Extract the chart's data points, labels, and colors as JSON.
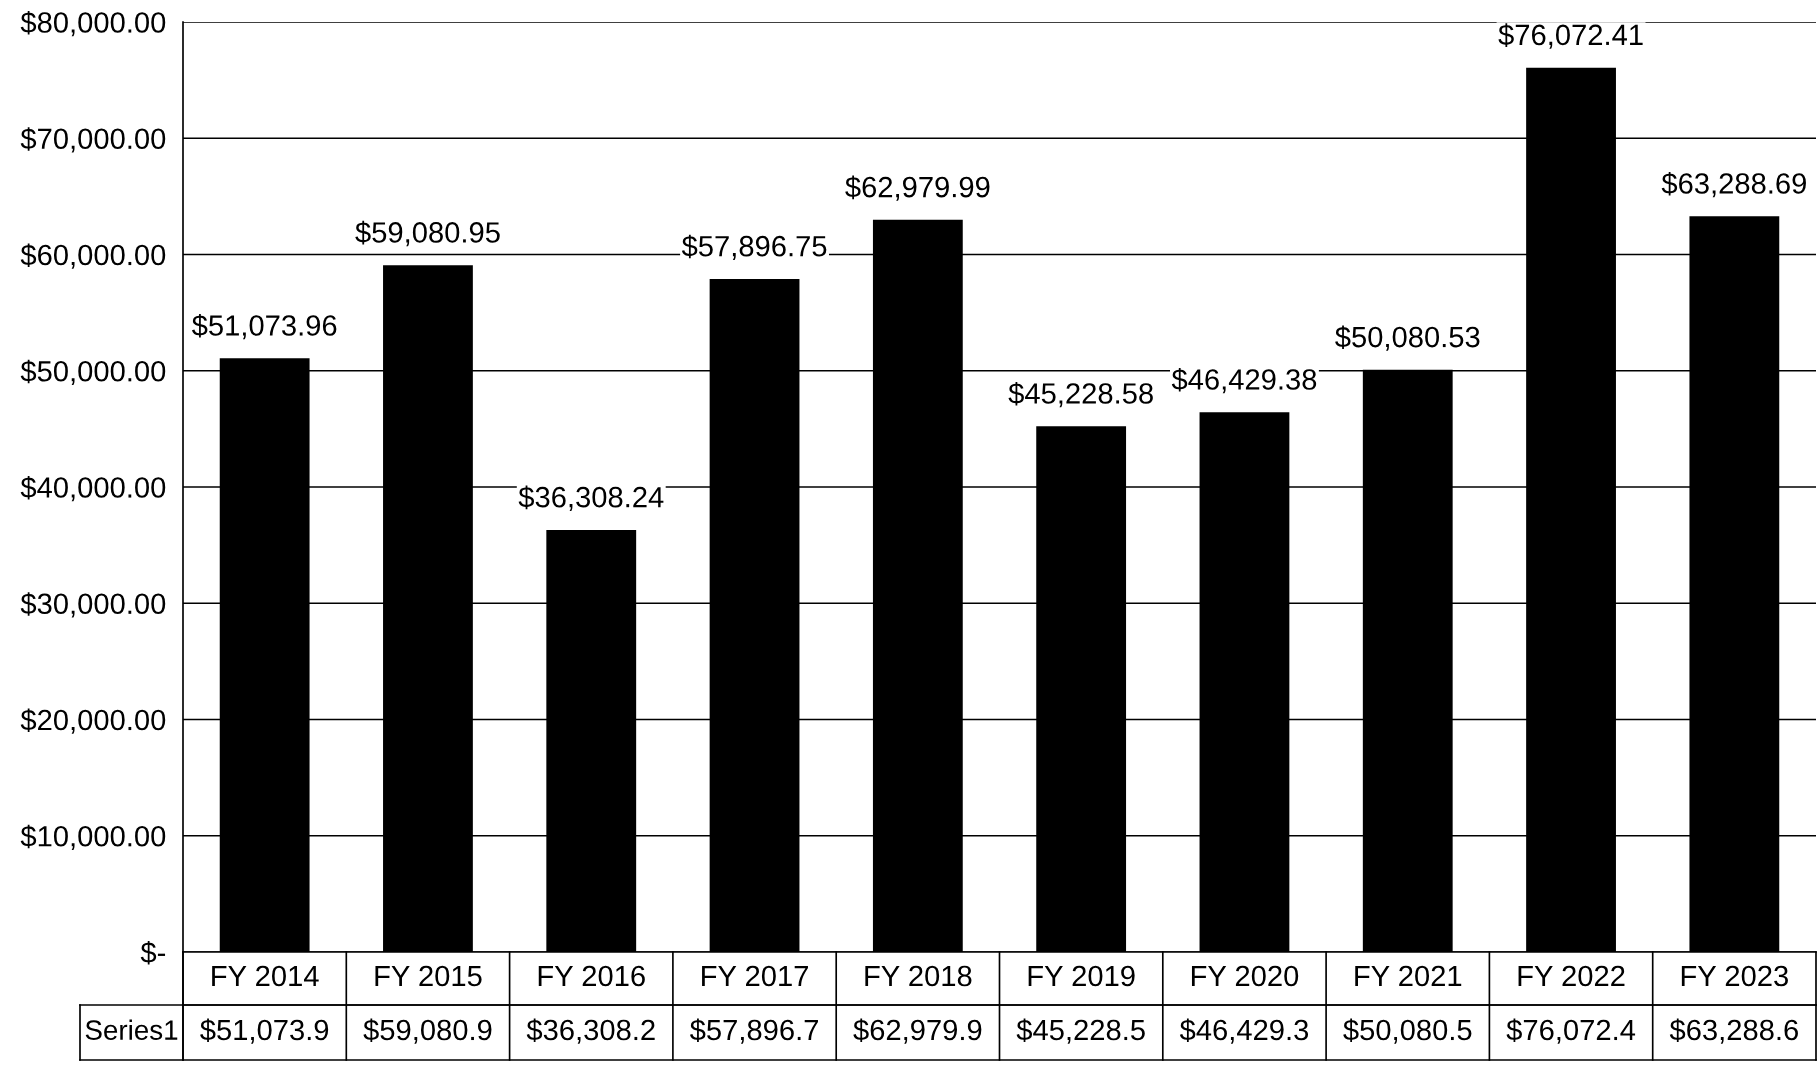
{
  "chart_data": {
    "type": "bar",
    "categories": [
      "FY 2014",
      "FY 2015",
      "FY 2016",
      "FY 2017",
      "FY 2018",
      "FY 2019",
      "FY 2020",
      "FY 2021",
      "FY 2022",
      "FY 2023"
    ],
    "series": [
      {
        "name": "Series1",
        "color": "#000000",
        "values": [
          51073.96,
          59080.95,
          36308.24,
          57896.75,
          62979.99,
          45228.58,
          46429.38,
          50080.53,
          76072.41,
          63288.69
        ],
        "value_labels": [
          "$51,073.96",
          "$59,080.95",
          "$36,308.24",
          "$57,896.75",
          "$62,979.99",
          "$45,228.58",
          "$46,429.38",
          "$50,080.53",
          "$76,072.41",
          "$63,288.69"
        ]
      }
    ],
    "annotations": [
      "$51,073.9",
      "$59,080.9",
      "$36,308.2",
      "$57,896.7",
      "$62,979.9",
      "$45,228.5",
      "$46,429.3",
      "$50,080.5",
      "$76,072.4",
      "$63,288.6"
    ],
    "ylim": [
      0,
      80000
    ],
    "yticks": [
      {
        "value": 0,
        "label": "$-"
      },
      {
        "value": 10000,
        "label": "$10,000.00"
      },
      {
        "value": 20000,
        "label": "$20,000.00"
      },
      {
        "value": 30000,
        "label": "$30,000.00"
      },
      {
        "value": 40000,
        "label": "$40,000.00"
      },
      {
        "value": 50000,
        "label": "$50,000.00"
      },
      {
        "value": 60000,
        "label": "$60,000.00"
      },
      {
        "value": 70000,
        "label": "$70,000.00"
      },
      {
        "value": 80000,
        "label": "$80,000.00"
      }
    ],
    "grid": "y",
    "legend": "bottom"
  }
}
